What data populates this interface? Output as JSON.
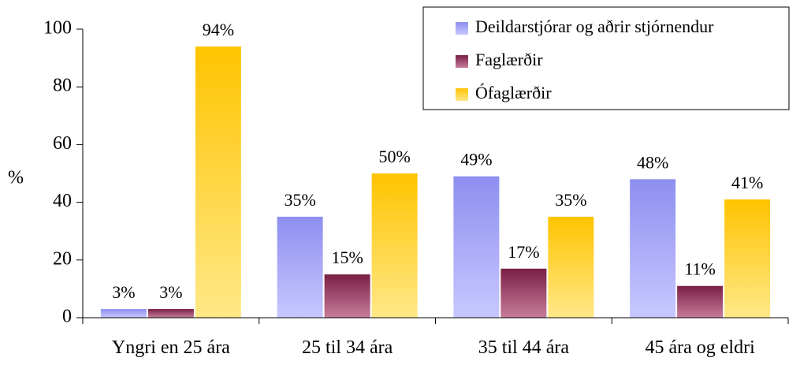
{
  "chart_data": {
    "type": "bar",
    "ylabel": "%",
    "ylim": [
      0,
      100
    ],
    "yticks": [
      0,
      20,
      40,
      60,
      80,
      100
    ],
    "categories": [
      "Yngri en 25 ára",
      "25 til 34 ára",
      "35 til 44 ára",
      "45 ára og eldri"
    ],
    "series": [
      {
        "name": "Deildarstjórar og aðrir stjórnendur",
        "values": [
          3,
          35,
          49,
          48
        ],
        "labels": [
          "3%",
          "35%",
          "49%",
          "48%"
        ],
        "color_top": "#8e8ef0",
        "color_bottom": "#c8c8ff"
      },
      {
        "name": "Faglærðir",
        "values": [
          3,
          15,
          17,
          11
        ],
        "labels": [
          "3%",
          "15%",
          "17%",
          "11%"
        ],
        "color_top": "#7a1f45",
        "color_bottom": "#c77d9a"
      },
      {
        "name": "Ófaglærðir",
        "values": [
          94,
          50,
          35,
          41
        ],
        "labels": [
          "94%",
          "50%",
          "35%",
          "41%"
        ],
        "color_top": "#ffc400",
        "color_bottom": "#ffe888"
      }
    ],
    "legend_position": "top-right",
    "grid": false
  }
}
